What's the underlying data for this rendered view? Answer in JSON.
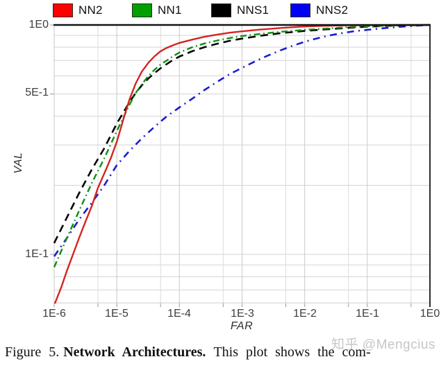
{
  "legend": {
    "items": [
      {
        "label": "NN2",
        "swatch_color": "#ff0000"
      },
      {
        "label": "NN1",
        "swatch_color": "#00a000"
      },
      {
        "label": "NNS1",
        "swatch_color": "#000000"
      },
      {
        "label": "NNS2",
        "swatch_color": "#0000f5"
      }
    ]
  },
  "axes": {
    "y_label": "VAL",
    "x_label": "FAR",
    "y_tick_labels": [
      "1E0",
      "5E-1",
      "1E-1"
    ],
    "x_tick_labels": [
      "1E-6",
      "1E-5",
      "1E-4",
      "1E-3",
      "1E-2",
      "1E-1",
      "1E0"
    ]
  },
  "watermark": {
    "text": "知乎 @Mengcius"
  },
  "caption": {
    "figure_label": "Figure 5.",
    "title": "Network Architectures.",
    "text": "This plot shows the com-"
  },
  "chart_data": {
    "type": "line",
    "title": "",
    "xlabel": "FAR",
    "ylabel": "VAL",
    "x_scale": "log",
    "y_scale": "log",
    "xlim": [
      1e-06,
      1.0
    ],
    "ylim": [
      0.0615,
      1.0
    ],
    "grid": true,
    "legend_position": "top",
    "x_major_ticks": [
      1e-06,
      1e-05,
      0.0001,
      0.001,
      0.01,
      0.1,
      1.0
    ],
    "x_minor_gridlines": [
      5e-06,
      5e-05,
      0.0005,
      0.005,
      0.05,
      0.5
    ],
    "x_interior_gridlines": [
      1e-05,
      0.0001,
      0.001,
      0.01,
      0.1
    ],
    "y_gridlines": [
      0.9,
      0.8,
      0.7,
      0.6,
      0.5,
      0.4,
      0.3,
      0.2,
      0.1,
      0.09,
      0.08,
      0.07
    ],
    "y_ticks": [
      {
        "label": "1E0",
        "value": 1.0
      },
      {
        "label": "5E-1",
        "value": 0.5
      },
      {
        "label": "1E-1",
        "value": 0.1
      }
    ],
    "series": [
      {
        "name": "NNS2",
        "color": "#1c1ccd",
        "dash": "10 6.5 2 6.5",
        "width": 2.6,
        "points": [
          [
            1e-06,
            0.098
          ],
          [
            1.6e-06,
            0.118
          ],
          [
            2.5e-06,
            0.142
          ],
          [
            4e-06,
            0.168
          ],
          [
            6.3e-06,
            0.2
          ],
          [
            1e-05,
            0.245
          ],
          [
            1.6e-05,
            0.283
          ],
          [
            2.5e-05,
            0.32
          ],
          [
            4e-05,
            0.36
          ],
          [
            6.3e-05,
            0.4
          ],
          [
            0.0001,
            0.437
          ],
          [
            0.00016,
            0.477
          ],
          [
            0.00025,
            0.52
          ],
          [
            0.0004,
            0.565
          ],
          [
            0.00063,
            0.61
          ],
          [
            0.001,
            0.65
          ],
          [
            0.0016,
            0.693
          ],
          [
            0.0025,
            0.733
          ],
          [
            0.004,
            0.773
          ],
          [
            0.0063,
            0.81
          ],
          [
            0.01,
            0.845
          ],
          [
            0.016,
            0.875
          ],
          [
            0.025,
            0.9
          ],
          [
            0.04,
            0.922
          ],
          [
            0.063,
            0.94
          ],
          [
            0.1,
            0.952
          ],
          [
            0.16,
            0.965
          ],
          [
            0.25,
            0.975
          ],
          [
            0.4,
            0.985
          ],
          [
            0.63,
            0.993
          ],
          [
            1.0,
            1.0
          ]
        ]
      },
      {
        "name": "NNS1",
        "color": "#050505",
        "dash": "11 7",
        "width": 2.6,
        "points": [
          [
            1e-06,
            0.112
          ],
          [
            1.6e-06,
            0.145
          ],
          [
            2.5e-06,
            0.185
          ],
          [
            4e-06,
            0.235
          ],
          [
            6.3e-06,
            0.29
          ],
          [
            1e-05,
            0.372
          ],
          [
            1.6e-05,
            0.462
          ],
          [
            2e-05,
            0.505
          ],
          [
            2.5e-05,
            0.545
          ],
          [
            3.2e-05,
            0.585
          ],
          [
            4e-05,
            0.617
          ],
          [
            5e-05,
            0.648
          ],
          [
            6.3e-05,
            0.676
          ],
          [
            8e-05,
            0.705
          ],
          [
            0.0001,
            0.728
          ],
          [
            0.00016,
            0.768
          ],
          [
            0.00025,
            0.8
          ],
          [
            0.0004,
            0.828
          ],
          [
            0.00063,
            0.853
          ],
          [
            0.001,
            0.872
          ],
          [
            0.002,
            0.898
          ],
          [
            0.004,
            0.92
          ],
          [
            0.01,
            0.942
          ],
          [
            0.02,
            0.955
          ],
          [
            0.05,
            0.972
          ],
          [
            0.1,
            0.983
          ],
          [
            0.2,
            0.991
          ],
          [
            0.5,
            0.997
          ],
          [
            1.0,
            1.0
          ]
        ]
      },
      {
        "name": "NN1",
        "color": "#0d8f12",
        "dash": "9 4.5 1.8 4.5",
        "width": 2.4,
        "points": [
          [
            1e-06,
            0.088
          ],
          [
            1.6e-06,
            0.118
          ],
          [
            2.5e-06,
            0.155
          ],
          [
            4e-06,
            0.205
          ],
          [
            6.3e-06,
            0.262
          ],
          [
            1e-05,
            0.345
          ],
          [
            1.6e-05,
            0.45
          ],
          [
            2e-05,
            0.505
          ],
          [
            2.5e-05,
            0.55
          ],
          [
            3.2e-05,
            0.6
          ],
          [
            4e-05,
            0.638
          ],
          [
            5e-05,
            0.672
          ],
          [
            6.3e-05,
            0.7
          ],
          [
            8e-05,
            0.732
          ],
          [
            0.0001,
            0.758
          ],
          [
            0.00016,
            0.8
          ],
          [
            0.00025,
            0.83
          ],
          [
            0.0004,
            0.855
          ],
          [
            0.00063,
            0.877
          ],
          [
            0.001,
            0.895
          ],
          [
            0.002,
            0.915
          ],
          [
            0.004,
            0.933
          ],
          [
            0.01,
            0.952
          ],
          [
            0.02,
            0.963
          ],
          [
            0.05,
            0.978
          ],
          [
            0.1,
            0.987
          ],
          [
            0.2,
            0.993
          ],
          [
            0.5,
            0.998
          ],
          [
            1.0,
            1.0
          ]
        ]
      },
      {
        "name": "NN2",
        "color": "#d42420",
        "dash": null,
        "width": 2.4,
        "points": [
          [
            1e-06,
            0.06
          ],
          [
            1.3e-06,
            0.072
          ],
          [
            1.6e-06,
            0.085
          ],
          [
            2e-06,
            0.1
          ],
          [
            2.5e-06,
            0.118
          ],
          [
            3.2e-06,
            0.14
          ],
          [
            4e-06,
            0.163
          ],
          [
            5e-06,
            0.195
          ],
          [
            6.3e-06,
            0.225
          ],
          [
            8e-06,
            0.262
          ],
          [
            1e-05,
            0.31
          ],
          [
            1.3e-05,
            0.395
          ],
          [
            1.6e-05,
            0.475
          ],
          [
            2e-05,
            0.555
          ],
          [
            2.5e-05,
            0.625
          ],
          [
            3.2e-05,
            0.685
          ],
          [
            4e-05,
            0.73
          ],
          [
            5e-05,
            0.768
          ],
          [
            6.3e-05,
            0.795
          ],
          [
            8e-05,
            0.817
          ],
          [
            0.0001,
            0.835
          ],
          [
            0.00016,
            0.863
          ],
          [
            0.00025,
            0.888
          ],
          [
            0.0004,
            0.908
          ],
          [
            0.00063,
            0.925
          ],
          [
            0.001,
            0.938
          ],
          [
            0.002,
            0.955
          ],
          [
            0.004,
            0.97
          ],
          [
            0.01,
            0.985
          ],
          [
            0.02,
            0.991
          ],
          [
            0.05,
            0.996
          ],
          [
            0.1,
            0.998
          ],
          [
            0.3,
            0.999
          ],
          [
            1.0,
            1.0
          ]
        ]
      }
    ]
  }
}
